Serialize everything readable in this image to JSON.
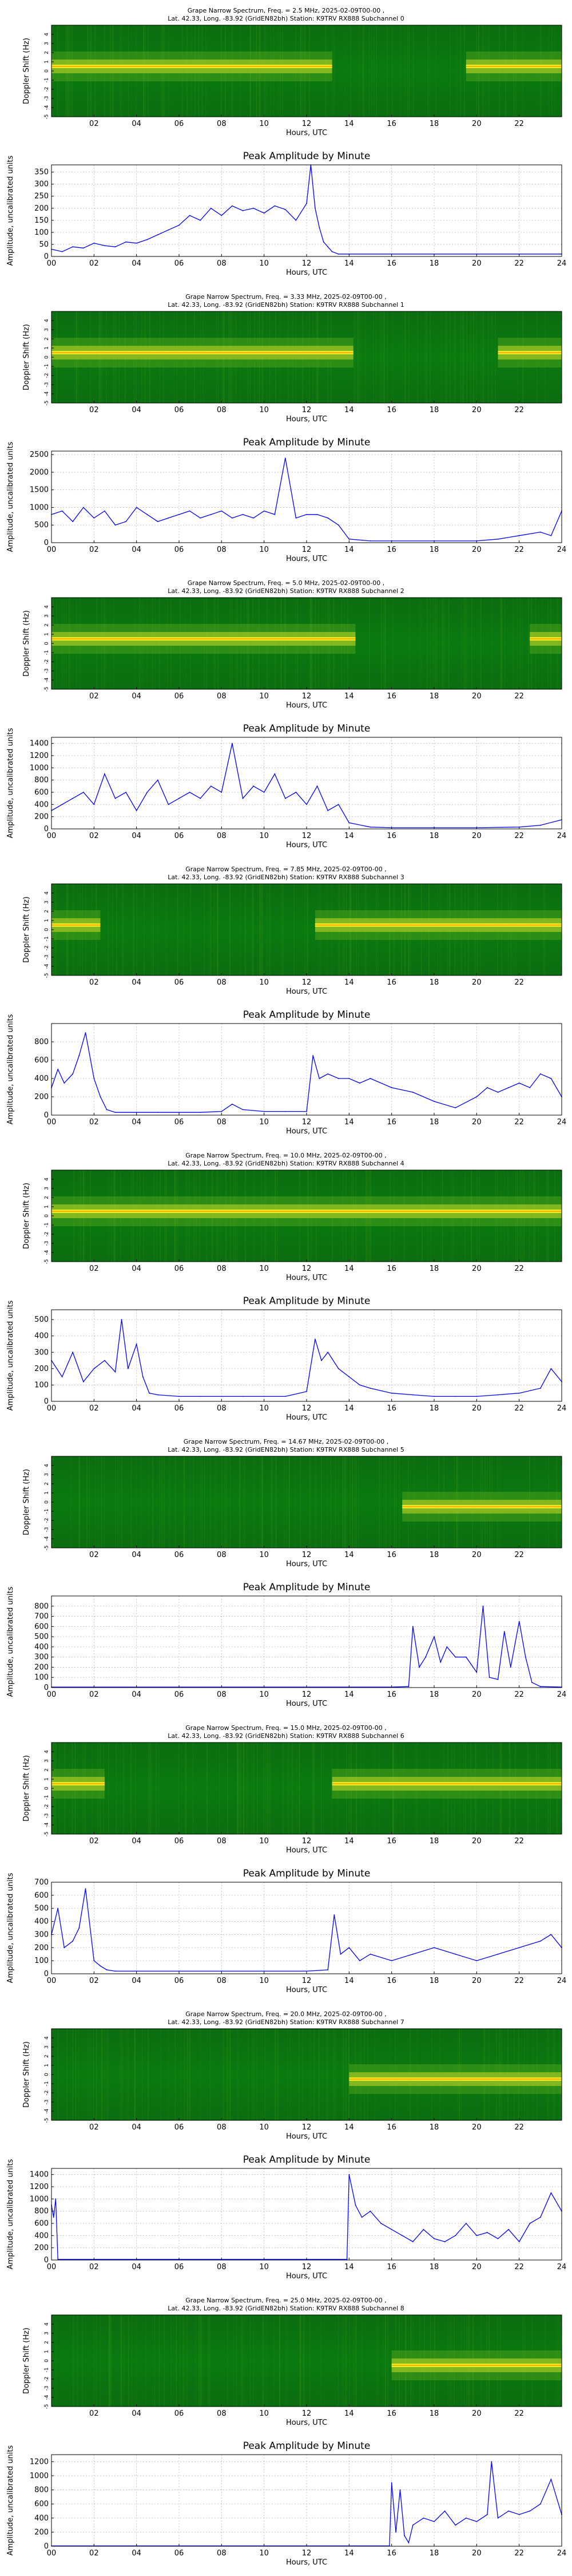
{
  "figure": {
    "spectrum_ylabel": "Doppler Shift (Hz)",
    "xlabel": "Hours, UTC",
    "amp_title": "Peak Amplitude by Minute",
    "amp_ylabel": "Amplitude, uncalibrated units",
    "spectrum_yticks": [
      "4",
      "3",
      "2",
      "1",
      "0",
      "-1",
      "-2",
      "-3",
      "-4",
      "-5"
    ],
    "spectrum_xticks": [
      "02",
      "04",
      "06",
      "08",
      "10",
      "12",
      "14",
      "16",
      "18",
      "20",
      "22"
    ],
    "amp_xticks": [
      "00",
      "02",
      "04",
      "06",
      "08",
      "10",
      "12",
      "14",
      "16",
      "18",
      "20",
      "22",
      "24"
    ],
    "colors": {
      "spectrum_bg": "#0a7a10",
      "spectrum_bright": "#f2ee20",
      "spectrum_hot": "#ff8a00",
      "line": "#0000ff",
      "grid": "#b8b8b8"
    }
  },
  "chart_data": [
    {
      "type": "heatmap",
      "title_line1": "Grape Narrow Spectrum, Freq. = 2.5 MHz, 2025-02-09T00-00 ,",
      "title_line2": "Lat. 42.33, Long. -83.92 (GridEN82bh) Station: K9TRV RX888 Subchannel 0",
      "xlabel": "Hours, UTC",
      "ylabel": "Doppler Shift (Hz)",
      "xlim": [
        0,
        24
      ],
      "ylim": [
        -5,
        5
      ],
      "signal_segments": [
        [
          0,
          13.2
        ],
        [
          19.5,
          24
        ]
      ],
      "signal_offset_hz": 0.5
    },
    {
      "type": "line",
      "title": "Peak Amplitude by Minute",
      "xlabel": "Hours, UTC",
      "ylabel": "Amplitude, uncalibrated units",
      "xlim": [
        0,
        24
      ],
      "ylim": [
        0,
        380
      ],
      "yticks": [
        0,
        50,
        100,
        150,
        200,
        250,
        300,
        350
      ],
      "x": [
        0,
        0.5,
        1,
        1.5,
        2,
        2.5,
        3,
        3.5,
        4,
        4.5,
        5,
        5.5,
        6,
        6.5,
        7,
        7.5,
        8,
        8.5,
        9,
        9.5,
        10,
        10.5,
        11,
        11.5,
        12,
        12.2,
        12.4,
        12.6,
        12.8,
        13,
        13.2,
        13.5,
        14,
        16,
        18,
        20,
        22,
        24
      ],
      "y": [
        30,
        20,
        40,
        35,
        55,
        45,
        40,
        60,
        55,
        70,
        90,
        110,
        130,
        170,
        150,
        200,
        170,
        210,
        190,
        200,
        180,
        210,
        195,
        150,
        220,
        380,
        200,
        120,
        60,
        40,
        20,
        10,
        10,
        10,
        10,
        10,
        10,
        10
      ]
    },
    {
      "type": "heatmap",
      "title_line1": "Grape Narrow Spectrum, Freq. = 3.33 MHz, 2025-02-09T00-00 ,",
      "title_line2": "Lat. 42.33, Long. -83.92 (GridEN82bh) Station: K9TRV RX888 Subchannel 1",
      "xlabel": "Hours, UTC",
      "ylabel": "Doppler Shift (Hz)",
      "xlim": [
        0,
        24
      ],
      "ylim": [
        -5,
        5
      ],
      "signal_segments": [
        [
          0,
          14.2
        ],
        [
          21.0,
          24
        ]
      ],
      "signal_offset_hz": 0.5
    },
    {
      "type": "line",
      "title": "Peak Amplitude by Minute",
      "xlabel": "Hours, UTC",
      "ylabel": "Amplitude, uncalibrated units",
      "xlim": [
        0,
        24
      ],
      "ylim": [
        0,
        2600
      ],
      "yticks": [
        0,
        500,
        1000,
        1500,
        2000,
        2500
      ],
      "x": [
        0,
        0.5,
        1,
        1.5,
        2,
        2.5,
        3,
        3.5,
        4,
        4.5,
        5,
        5.5,
        6,
        6.5,
        7,
        7.5,
        8,
        8.5,
        9,
        9.5,
        10,
        10.5,
        11,
        11.5,
        12,
        12.5,
        13,
        13.5,
        14,
        15,
        16,
        18,
        20,
        21,
        22,
        23,
        23.5,
        24
      ],
      "y": [
        800,
        900,
        600,
        1000,
        700,
        900,
        500,
        600,
        1000,
        800,
        600,
        700,
        800,
        900,
        700,
        800,
        900,
        700,
        800,
        700,
        900,
        800,
        2400,
        700,
        800,
        800,
        700,
        500,
        100,
        50,
        50,
        50,
        50,
        100,
        200,
        300,
        200,
        900
      ]
    },
    {
      "type": "heatmap",
      "title_line1": "Grape Narrow Spectrum, Freq. = 5.0 MHz, 2025-02-09T00-00 ,",
      "title_line2": "Lat. 42.33, Long. -83.92 (GridEN82bh) Station: K9TRV RX888 Subchannel 2",
      "xlabel": "Hours, UTC",
      "ylabel": "Doppler Shift (Hz)",
      "xlim": [
        0,
        24
      ],
      "ylim": [
        -5,
        5
      ],
      "signal_segments": [
        [
          0,
          14.3
        ],
        [
          22.5,
          24
        ]
      ],
      "signal_offset_hz": 0.5
    },
    {
      "type": "line",
      "title": "Peak Amplitude by Minute",
      "xlabel": "Hours, UTC",
      "ylabel": "Amplitude, uncalibrated units",
      "xlim": [
        0,
        24
      ],
      "ylim": [
        0,
        1500
      ],
      "yticks": [
        0,
        200,
        400,
        600,
        800,
        1000,
        1200,
        1400
      ],
      "x": [
        0,
        0.5,
        1,
        1.5,
        2,
        2.5,
        3,
        3.5,
        4,
        4.5,
        5,
        5.5,
        6,
        6.5,
        7,
        7.5,
        8,
        8.5,
        9,
        9.5,
        10,
        10.5,
        11,
        11.5,
        12,
        12.5,
        13,
        13.5,
        14,
        15,
        16,
        18,
        20,
        22,
        23,
        24
      ],
      "y": [
        300,
        400,
        500,
        600,
        400,
        900,
        500,
        600,
        300,
        600,
        800,
        400,
        500,
        600,
        500,
        700,
        600,
        1400,
        500,
        700,
        600,
        900,
        500,
        600,
        400,
        700,
        300,
        400,
        100,
        30,
        20,
        20,
        20,
        30,
        60,
        150
      ]
    },
    {
      "type": "heatmap",
      "title_line1": "Grape Narrow Spectrum, Freq. = 7.85 MHz, 2025-02-09T00-00 ,",
      "title_line2": "Lat. 42.33, Long. -83.92 (GridEN82bh) Station: K9TRV RX888 Subchannel 3",
      "xlabel": "Hours, UTC",
      "ylabel": "Doppler Shift (Hz)",
      "xlim": [
        0,
        24
      ],
      "ylim": [
        -5,
        5
      ],
      "signal_segments": [
        [
          0,
          2.3
        ],
        [
          12.4,
          24
        ]
      ],
      "signal_offset_hz": 0.5
    },
    {
      "type": "line",
      "title": "Peak Amplitude by Minute",
      "xlabel": "Hours, UTC",
      "ylabel": "Amplitude, uncalibrated units",
      "xlim": [
        0,
        24
      ],
      "ylim": [
        0,
        1000
      ],
      "yticks": [
        0,
        200,
        400,
        600,
        800
      ],
      "x": [
        0,
        0.3,
        0.6,
        1,
        1.3,
        1.6,
        2,
        2.3,
        2.6,
        3,
        4,
        5,
        6,
        7,
        8,
        8.5,
        9,
        10,
        11,
        12,
        12.3,
        12.6,
        13,
        13.5,
        14,
        14.5,
        15,
        16,
        17,
        18,
        19,
        20,
        20.5,
        21,
        21.5,
        22,
        22.5,
        23,
        23.5,
        24
      ],
      "y": [
        300,
        500,
        350,
        450,
        650,
        900,
        400,
        200,
        60,
        30,
        30,
        30,
        30,
        30,
        40,
        120,
        60,
        40,
        40,
        40,
        650,
        400,
        450,
        400,
        400,
        350,
        400,
        300,
        250,
        150,
        80,
        200,
        300,
        250,
        300,
        350,
        300,
        450,
        400,
        200
      ]
    },
    {
      "type": "heatmap",
      "title_line1": "Grape Narrow Spectrum, Freq. = 10.0 MHz, 2025-02-09T00-00 ,",
      "title_line2": "Lat. 42.33, Long. -83.92 (GridEN82bh) Station: K9TRV RX888 Subchannel 4",
      "xlabel": "Hours, UTC",
      "ylabel": "Doppler Shift (Hz)",
      "xlim": [
        0,
        24
      ],
      "ylim": [
        -5,
        5
      ],
      "signal_segments": [
        [
          0,
          24
        ]
      ],
      "signal_offset_hz": 0.5
    },
    {
      "type": "line",
      "title": "Peak Amplitude by Minute",
      "xlabel": "Hours, UTC",
      "ylabel": "Amplitude, uncalibrated units",
      "xlim": [
        0,
        24
      ],
      "ylim": [
        0,
        560
      ],
      "yticks": [
        0,
        100,
        200,
        300,
        400,
        500
      ],
      "x": [
        0,
        0.5,
        1,
        1.5,
        2,
        2.5,
        3,
        3.3,
        3.6,
        4,
        4.3,
        4.6,
        5,
        6,
        7,
        8,
        9,
        10,
        11,
        12,
        12.4,
        12.7,
        13,
        13.5,
        14,
        14.5,
        15,
        16,
        17,
        18,
        19,
        20,
        21,
        22,
        23,
        23.5,
        24
      ],
      "y": [
        250,
        150,
        300,
        120,
        200,
        250,
        180,
        500,
        200,
        350,
        150,
        50,
        40,
        30,
        30,
        30,
        30,
        30,
        30,
        60,
        380,
        250,
        300,
        200,
        150,
        100,
        80,
        50,
        40,
        30,
        30,
        30,
        40,
        50,
        80,
        200,
        120
      ]
    },
    {
      "type": "heatmap",
      "title_line1": "Grape Narrow Spectrum, Freq. = 14.67 MHz, 2025-02-09T00-00 ,",
      "title_line2": "Lat. 42.33, Long. -83.92 (GridEN82bh) Station: K9TRV RX888 Subchannel 5",
      "xlabel": "Hours, UTC",
      "ylabel": "Doppler Shift (Hz)",
      "xlim": [
        0,
        24
      ],
      "ylim": [
        -5,
        5
      ],
      "signal_segments": [
        [
          16.5,
          24
        ]
      ],
      "signal_offset_hz": -0.5
    },
    {
      "type": "line",
      "title": "Peak Amplitude by Minute",
      "xlabel": "Hours, UTC",
      "ylabel": "Amplitude, uncalibrated units",
      "xlim": [
        0,
        24
      ],
      "ylim": [
        0,
        900
      ],
      "yticks": [
        0,
        100,
        200,
        300,
        400,
        500,
        600,
        700,
        800
      ],
      "x": [
        0,
        2,
        4,
        6,
        8,
        10,
        12,
        14,
        16,
        16.8,
        17,
        17.3,
        17.6,
        18,
        18.3,
        18.6,
        19,
        19.5,
        20,
        20.3,
        20.6,
        21,
        21.3,
        21.6,
        22,
        22.3,
        22.6,
        23,
        24
      ],
      "y": [
        5,
        5,
        5,
        5,
        5,
        5,
        5,
        5,
        5,
        10,
        600,
        200,
        300,
        500,
        250,
        400,
        300,
        300,
        150,
        800,
        100,
        80,
        550,
        200,
        650,
        300,
        50,
        10,
        5
      ]
    },
    {
      "type": "heatmap",
      "title_line1": "Grape Narrow Spectrum, Freq. = 15.0 MHz, 2025-02-09T00-00 ,",
      "title_line2": "Lat. 42.33, Long. -83.92 (GridEN82bh) Station: K9TRV RX888 Subchannel 6",
      "xlabel": "Hours, UTC",
      "ylabel": "Doppler Shift (Hz)",
      "xlim": [
        0,
        24
      ],
      "ylim": [
        -5,
        5
      ],
      "signal_segments": [
        [
          0,
          2.5
        ],
        [
          13.2,
          24
        ]
      ],
      "signal_offset_hz": 0.5
    },
    {
      "type": "line",
      "title": "Peak Amplitude by Minute",
      "xlabel": "Hours, UTC",
      "ylabel": "Amplitude, uncalibrated units",
      "xlim": [
        0,
        24
      ],
      "ylim": [
        0,
        700
      ],
      "yticks": [
        0,
        100,
        200,
        300,
        400,
        500,
        600,
        700
      ],
      "x": [
        0,
        0.3,
        0.6,
        1,
        1.3,
        1.6,
        2,
        2.3,
        2.6,
        3,
        4,
        6,
        8,
        10,
        12,
        13,
        13.3,
        13.6,
        14,
        14.5,
        15,
        16,
        17,
        18,
        19,
        20,
        21,
        22,
        23,
        23.5,
        24
      ],
      "y": [
        300,
        500,
        200,
        250,
        350,
        650,
        100,
        60,
        30,
        20,
        20,
        20,
        20,
        20,
        20,
        30,
        450,
        150,
        200,
        100,
        150,
        100,
        150,
        200,
        150,
        100,
        150,
        200,
        250,
        300,
        200
      ]
    },
    {
      "type": "heatmap",
      "title_line1": "Grape Narrow Spectrum, Freq. = 20.0 MHz, 2025-02-09T00-00 ,",
      "title_line2": "Lat. 42.33, Long. -83.92 (GridEN82bh) Station: K9TRV RX888 Subchannel 7",
      "xlabel": "Hours, UTC",
      "ylabel": "Doppler Shift (Hz)",
      "xlim": [
        0,
        24
      ],
      "ylim": [
        -5,
        5
      ],
      "signal_segments": [
        [
          14.0,
          24
        ]
      ],
      "signal_offset_hz": -0.5
    },
    {
      "type": "line",
      "title": "Peak Amplitude by Minute",
      "xlabel": "Hours, UTC",
      "ylabel": "Amplitude, uncalibrated units",
      "xlim": [
        0,
        24
      ],
      "ylim": [
        0,
        1500
      ],
      "yticks": [
        0,
        200,
        400,
        600,
        800,
        1000,
        1200,
        1400
      ],
      "x": [
        0,
        0.1,
        0.2,
        0.3,
        2,
        4,
        6,
        8,
        10,
        12,
        13.9,
        14.0,
        14.3,
        14.6,
        15,
        15.5,
        16,
        16.5,
        17,
        17.5,
        18,
        18.5,
        19,
        19.5,
        20,
        20.5,
        21,
        21.5,
        22,
        22.5,
        23,
        23.5,
        24
      ],
      "y": [
        900,
        700,
        1000,
        10,
        10,
        10,
        10,
        10,
        10,
        10,
        10,
        1400,
        900,
        700,
        800,
        600,
        500,
        400,
        300,
        500,
        350,
        300,
        400,
        600,
        400,
        450,
        350,
        500,
        300,
        600,
        700,
        1100,
        800
      ]
    },
    {
      "type": "heatmap",
      "title_line1": "Grape Narrow Spectrum, Freq. = 25.0 MHz, 2025-02-09T00-00 ,",
      "title_line2": "Lat. 42.33, Long. -83.92 (GridEN82bh) Station: K9TRV RX888 Subchannel 8",
      "xlabel": "Hours, UTC",
      "ylabel": "Doppler Shift (Hz)",
      "xlim": [
        0,
        24
      ],
      "ylim": [
        -5,
        5
      ],
      "signal_segments": [
        [
          16.0,
          24
        ]
      ],
      "signal_offset_hz": -0.5
    },
    {
      "type": "line",
      "title": "Peak Amplitude by Minute",
      "xlabel": "Hours, UTC",
      "ylabel": "Amplitude, uncalibrated units",
      "xlim": [
        0,
        24
      ],
      "ylim": [
        0,
        1300
      ],
      "yticks": [
        0,
        200,
        400,
        600,
        800,
        1000,
        1200
      ],
      "x": [
        0,
        4,
        8,
        12,
        15.9,
        16.0,
        16.2,
        16.4,
        16.6,
        16.8,
        17,
        17.5,
        18,
        18.5,
        19,
        19.5,
        20,
        20.5,
        20.7,
        21,
        21.5,
        22,
        22.5,
        23,
        23.5,
        24
      ],
      "y": [
        5,
        5,
        5,
        5,
        5,
        900,
        200,
        800,
        150,
        50,
        300,
        400,
        350,
        500,
        300,
        400,
        350,
        450,
        1200,
        400,
        500,
        450,
        500,
        600,
        950,
        450
      ]
    }
  ]
}
